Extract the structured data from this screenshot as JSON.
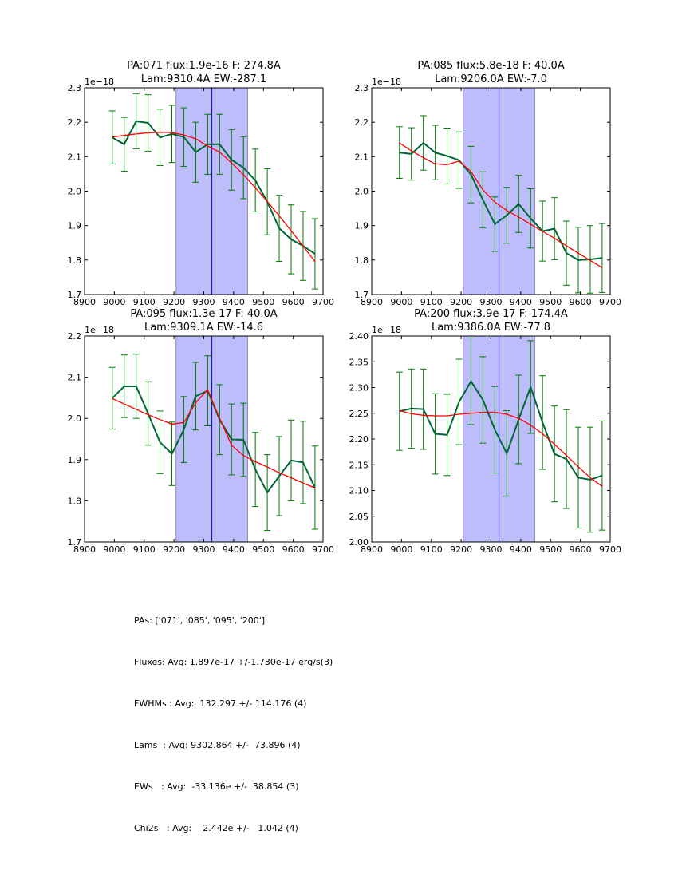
{
  "chart_data": [
    {
      "type": "line",
      "title": [
        "PA:071 flux:1.9e-16 F: 274.8A",
        "Lam:9310.4A EW:-287.1"
      ],
      "offset_label": "1e−18",
      "xlim": [
        8900,
        9700
      ],
      "ylim": [
        1.7,
        2.3
      ],
      "xticks": [
        "8900",
        "9000",
        "9100",
        "9200",
        "9300",
        "9400",
        "9500",
        "9600",
        "9700"
      ],
      "yticks": [
        "1.7",
        "1.8",
        "1.9",
        "2.0",
        "2.1",
        "2.2",
        "2.3"
      ],
      "shaded_region": [
        9207,
        9447
      ],
      "vline": 9327,
      "x": [
        8993,
        9033,
        9073,
        9113,
        9153,
        9193,
        9233,
        9273,
        9313,
        9353,
        9393,
        9433,
        9473,
        9513,
        9553,
        9593,
        9633,
        9673
      ],
      "series": [
        {
          "name": "data",
          "color": "#006633",
          "values": [
            2.156,
            2.136,
            2.203,
            2.198,
            2.156,
            2.166,
            2.157,
            2.113,
            2.136,
            2.136,
            2.091,
            2.068,
            2.031,
            1.969,
            1.892,
            1.86,
            1.841,
            1.818
          ],
          "errors": [
            0.077,
            0.078,
            0.08,
            0.082,
            0.082,
            0.083,
            0.085,
            0.087,
            0.087,
            0.087,
            0.088,
            0.09,
            0.091,
            0.096,
            0.096,
            0.1,
            0.1,
            0.102
          ]
        },
        {
          "name": "fit",
          "color": "#ff0000",
          "values": [
            2.157,
            2.162,
            2.166,
            2.169,
            2.171,
            2.17,
            2.163,
            2.152,
            2.131,
            2.113,
            2.082,
            2.048,
            2.01,
            1.97,
            1.928,
            1.885,
            1.84,
            1.796
          ]
        }
      ]
    },
    {
      "type": "line",
      "title": [
        "PA:085 flux:5.8e-18 F: 40.0A",
        "Lam:9206.0A EW:-7.0"
      ],
      "offset_label": "1e−18",
      "xlim": [
        8900,
        9700
      ],
      "ylim": [
        1.7,
        2.3
      ],
      "xticks": [
        "8900",
        "9000",
        "9100",
        "9200",
        "9300",
        "9400",
        "9500",
        "9600",
        "9700"
      ],
      "yticks": [
        "1.7",
        "1.8",
        "1.9",
        "2.0",
        "2.1",
        "2.2",
        "2.3"
      ],
      "shaded_region": [
        9207,
        9447
      ],
      "vline": 9327,
      "x": [
        8993,
        9033,
        9073,
        9113,
        9153,
        9193,
        9233,
        9273,
        9313,
        9353,
        9393,
        9433,
        9473,
        9513,
        9553,
        9593,
        9633,
        9673
      ],
      "series": [
        {
          "name": "data",
          "color": "#006633",
          "values": [
            2.112,
            2.108,
            2.14,
            2.112,
            2.102,
            2.09,
            2.048,
            1.975,
            1.904,
            1.93,
            1.963,
            1.921,
            1.884,
            1.891,
            1.82,
            1.8,
            1.802,
            1.806
          ],
          "errors": [
            0.075,
            0.076,
            0.079,
            0.079,
            0.081,
            0.082,
            0.082,
            0.081,
            0.079,
            0.081,
            0.083,
            0.086,
            0.087,
            0.09,
            0.093,
            0.095,
            0.098,
            0.1
          ]
        },
        {
          "name": "fit",
          "color": "#ff0000",
          "values": [
            2.14,
            2.117,
            2.097,
            2.079,
            2.077,
            2.087,
            2.057,
            2.004,
            1.968,
            1.944,
            1.925,
            1.904,
            1.883,
            1.863,
            1.841,
            1.82,
            1.799,
            1.778
          ]
        }
      ]
    },
    {
      "type": "line",
      "title": [
        "PA:095 flux:1.3e-17 F: 40.0A",
        "Lam:9309.1A EW:-14.6"
      ],
      "offset_label": "1e−18",
      "xlim": [
        8900,
        9700
      ],
      "ylim": [
        1.7,
        2.2
      ],
      "xticks": [
        "8900",
        "9000",
        "9100",
        "9200",
        "9300",
        "9400",
        "9500",
        "9600",
        "9700"
      ],
      "yticks": [
        "1.7",
        "1.8",
        "1.9",
        "2.0",
        "2.1",
        "2.2"
      ],
      "shaded_region": [
        9207,
        9447
      ],
      "vline": 9327,
      "x": [
        8993,
        9033,
        9073,
        9113,
        9153,
        9193,
        9233,
        9273,
        9313,
        9353,
        9393,
        9433,
        9473,
        9513,
        9553,
        9593,
        9633,
        9673
      ],
      "series": [
        {
          "name": "data",
          "color": "#006633",
          "values": [
            2.049,
            2.078,
            2.078,
            2.012,
            1.942,
            1.914,
            1.973,
            2.054,
            2.067,
            1.997,
            1.949,
            1.948,
            1.876,
            1.82,
            1.86,
            1.898,
            1.893,
            1.832
          ],
          "errors": [
            0.075,
            0.076,
            0.078,
            0.077,
            0.076,
            0.077,
            0.08,
            0.082,
            0.085,
            0.085,
            0.086,
            0.089,
            0.09,
            0.092,
            0.096,
            0.098,
            0.1,
            0.101
          ]
        },
        {
          "name": "fit",
          "color": "#ff0000",
          "values": [
            2.048,
            2.035,
            2.022,
            2.009,
            1.997,
            1.986,
            1.99,
            2.038,
            2.07,
            2.0,
            1.935,
            1.91,
            1.895,
            1.882,
            1.868,
            1.856,
            1.843,
            1.831
          ]
        }
      ]
    },
    {
      "type": "line",
      "title": [
        "PA:200 flux:3.9e-17 F: 174.4A",
        "Lam:9386.0A EW:-77.8"
      ],
      "offset_label": "1e−18",
      "xlim": [
        8900,
        9700
      ],
      "ylim": [
        2.0,
        2.4
      ],
      "xticks": [
        "8900",
        "9000",
        "9100",
        "9200",
        "9300",
        "9400",
        "9500",
        "9600",
        "9700"
      ],
      "yticks": [
        "2.00",
        "2.05",
        "2.10",
        "2.15",
        "2.20",
        "2.25",
        "2.30",
        "2.35",
        "2.40"
      ],
      "shaded_region": [
        9207,
        9447
      ],
      "vline": 9327,
      "x": [
        8993,
        9033,
        9073,
        9113,
        9153,
        9193,
        9233,
        9273,
        9313,
        9353,
        9393,
        9433,
        9473,
        9513,
        9553,
        9593,
        9633,
        9673
      ],
      "series": [
        {
          "name": "data",
          "color": "#006633",
          "values": [
            2.254,
            2.259,
            2.258,
            2.21,
            2.208,
            2.272,
            2.312,
            2.276,
            2.218,
            2.172,
            2.238,
            2.301,
            2.232,
            2.171,
            2.161,
            2.125,
            2.121,
            2.129
          ],
          "errors": [
            0.076,
            0.077,
            0.078,
            0.078,
            0.079,
            0.083,
            0.084,
            0.084,
            0.084,
            0.083,
            0.086,
            0.09,
            0.091,
            0.093,
            0.096,
            0.098,
            0.102,
            0.106
          ]
        },
        {
          "name": "fit",
          "color": "#ff0000",
          "values": [
            2.255,
            2.249,
            2.246,
            2.245,
            2.245,
            2.248,
            2.25,
            2.252,
            2.252,
            2.248,
            2.24,
            2.227,
            2.21,
            2.19,
            2.168,
            2.146,
            2.125,
            2.108
          ]
        }
      ]
    }
  ],
  "summary": {
    "lines": [
      "PAs: ['071', '085', '095', '200']",
      "Fluxes: Avg: 1.897e-17 +/-1.730e-17 erg/s(3)",
      "FWHMs : Avg:  132.297 +/- 114.176 (4)",
      "Lams  : Avg: 9302.864 +/-  73.896 (4)",
      "EWs   : Avg:  -33.136e +/-  38.854 (3)",
      "Chi2s   : Avg:    2.442e +/-   1.042 (4)"
    ]
  },
  "colors": {
    "shade": "#bdbdfb",
    "shade_edge": "#8888bb",
    "vline": "#0000cc",
    "data_line": "#006633",
    "errorbar": "#007700",
    "fit_line": "#ff0000"
  }
}
